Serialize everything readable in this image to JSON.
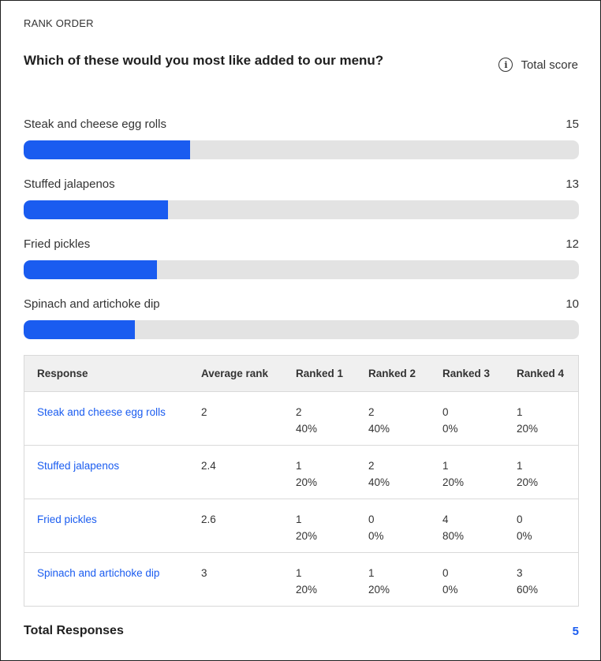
{
  "question": {
    "type_label": "RANK ORDER",
    "title": "Which of these would you most like added to our menu?",
    "score_toggle_label": "Total score",
    "info_icon": "info-icon"
  },
  "colors": {
    "bar_fill": "#1a5cf0",
    "bar_track": "#e3e3e3",
    "link": "#1a5cf0"
  },
  "chart_data": {
    "type": "bar",
    "orientation": "horizontal",
    "categories": [
      "Steak and cheese egg rolls",
      "Stuffed jalapenos",
      "Fried pickles",
      "Spinach and artichoke dip"
    ],
    "values": [
      15,
      13,
      12,
      10
    ],
    "xlim": [
      0,
      50
    ]
  },
  "table": {
    "headers": [
      "Response",
      "Average rank",
      "Ranked 1",
      "Ranked 2",
      "Ranked 3",
      "Ranked 4"
    ],
    "rows": [
      {
        "response": "Steak and cheese egg rolls",
        "avg": "2",
        "r1": "2",
        "r1p": "40%",
        "r2": "2",
        "r2p": "40%",
        "r3": "0",
        "r3p": "0%",
        "r4": "1",
        "r4p": "20%"
      },
      {
        "response": "Stuffed jalapenos",
        "avg": "2.4",
        "r1": "1",
        "r1p": "20%",
        "r2": "2",
        "r2p": "40%",
        "r3": "1",
        "r3p": "20%",
        "r4": "1",
        "r4p": "20%"
      },
      {
        "response": "Fried pickles",
        "avg": "2.6",
        "r1": "1",
        "r1p": "20%",
        "r2": "0",
        "r2p": "0%",
        "r3": "4",
        "r3p": "80%",
        "r4": "0",
        "r4p": "0%"
      },
      {
        "response": "Spinach and artichoke dip",
        "avg": "3",
        "r1": "1",
        "r1p": "20%",
        "r2": "1",
        "r2p": "20%",
        "r3": "0",
        "r3p": "0%",
        "r4": "3",
        "r4p": "60%"
      }
    ]
  },
  "total": {
    "label": "Total Responses",
    "value": "5"
  }
}
